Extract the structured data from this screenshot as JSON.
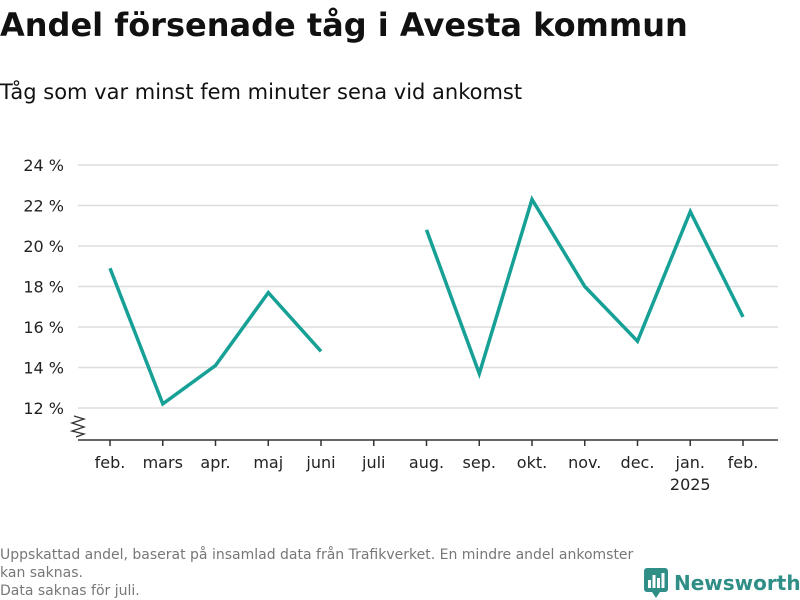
{
  "title": "Andel försenade tåg i Avesta kommun",
  "subtitle": "Tåg som var minst fem minuter sena vid ankomst",
  "footnote": {
    "line1": "Uppskattad andel, baserat på insamlad data från Trafikverket. En mindre andel ankomster kan saknas.",
    "line2": "Data saknas för juli."
  },
  "brand": {
    "name": "Newsworthy",
    "icon": "bar-chart-logo-icon"
  },
  "colors": {
    "line": "#16a096",
    "grid": "#dddddd",
    "axis": "#333333",
    "brand": "#2f8f86"
  },
  "chart_data": {
    "type": "line",
    "title": "Andel försenade tåg i Avesta kommun",
    "subtitle": "Tåg som var minst fem minuter sena vid ankomst",
    "categories": [
      "feb.",
      "mars",
      "apr.",
      "maj",
      "juni",
      "juli",
      "aug.",
      "sep.",
      "okt.",
      "nov.",
      "dec.",
      "jan.",
      "feb."
    ],
    "category_sublabels": [
      "",
      "",
      "",
      "",
      "",
      "",
      "",
      "",
      "",
      "",
      "",
      "2025",
      ""
    ],
    "series": [
      {
        "values": [
          18.9,
          12.2,
          14.1,
          17.7,
          14.8,
          null,
          20.8,
          13.7,
          22.3,
          18.0,
          15.3,
          21.7,
          16.5
        ]
      }
    ],
    "yticks": [
      12,
      14,
      16,
      18,
      20,
      22,
      24
    ],
    "ytick_labels": [
      "12 %",
      "14 %",
      "16 %",
      "18 %",
      "20 %",
      "22 %",
      "24 %"
    ],
    "ylim": [
      12,
      24
    ],
    "y_axis_break": true,
    "grid": true,
    "legend": "none"
  }
}
